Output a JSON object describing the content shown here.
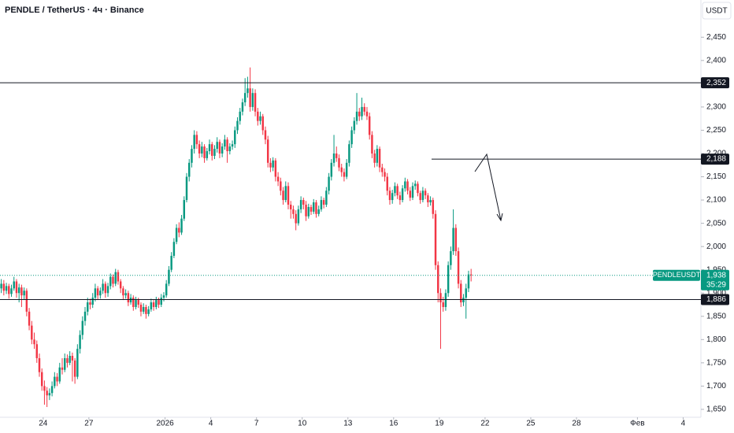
{
  "chart_data": {
    "type": "candlestick",
    "title": "PENDLE / TetherUS · 4ч · Binance",
    "currency_button": "USDT",
    "up_color": "#089981",
    "down_color": "#f23645",
    "ylim": [
      1633,
      2530
    ],
    "yticks": [
      {
        "value": 1650,
        "label": "1,650"
      },
      {
        "value": 1700,
        "label": "1,700"
      },
      {
        "value": 1750,
        "label": "1,750"
      },
      {
        "value": 1800,
        "label": "1,800"
      },
      {
        "value": 1850,
        "label": "1,850"
      },
      {
        "value": 1900,
        "label": "1,900"
      },
      {
        "value": 1950,
        "label": "1,950"
      },
      {
        "value": 2000,
        "label": "2,000"
      },
      {
        "value": 2050,
        "label": "2,050"
      },
      {
        "value": 2100,
        "label": "2,100"
      },
      {
        "value": 2150,
        "label": "2,150"
      },
      {
        "value": 2200,
        "label": "2,200"
      },
      {
        "value": 2250,
        "label": "2,250"
      },
      {
        "value": 2300,
        "label": "2,300"
      },
      {
        "value": 2350,
        "label": "2,350"
      },
      {
        "value": 2400,
        "label": "2,400"
      },
      {
        "value": 2450,
        "label": "2,450"
      }
    ],
    "xlim": [
      0,
      276
    ],
    "xticks": [
      {
        "value": 17,
        "label": "24"
      },
      {
        "value": 35,
        "label": "27"
      },
      {
        "value": 65,
        "label": "2026"
      },
      {
        "value": 83,
        "label": "4"
      },
      {
        "value": 101,
        "label": "7"
      },
      {
        "value": 119,
        "label": "10"
      },
      {
        "value": 137,
        "label": "13"
      },
      {
        "value": 155,
        "label": "16"
      },
      {
        "value": 173,
        "label": "19"
      },
      {
        "value": 191,
        "label": "22"
      },
      {
        "value": 209,
        "label": "25"
      },
      {
        "value": 227,
        "label": "28"
      },
      {
        "value": 251,
        "label": "Фев"
      },
      {
        "value": 269,
        "label": "4"
      }
    ],
    "levels": [
      {
        "value": 2352,
        "label": "2,352",
        "full": true
      },
      {
        "value": 2188,
        "label": "2,188",
        "full": false
      },
      {
        "value": 1886,
        "label": "1,886",
        "full": true
      }
    ],
    "last_price": {
      "symbol": "PENDLEUSDT",
      "value": 1938,
      "label": "1,938",
      "countdown": "35:29"
    },
    "ohlc": [
      [
        1910,
        1930,
        1900,
        1920
      ],
      [
        1920,
        1928,
        1895,
        1905
      ],
      [
        1905,
        1922,
        1898,
        1915
      ],
      [
        1915,
        1920,
        1888,
        1898
      ],
      [
        1898,
        1918,
        1892,
        1910
      ],
      [
        1910,
        1935,
        1905,
        1925
      ],
      [
        1925,
        1930,
        1890,
        1900
      ],
      [
        1900,
        1920,
        1880,
        1912
      ],
      [
        1912,
        1918,
        1870,
        1895
      ],
      [
        1895,
        1912,
        1885,
        1905
      ],
      [
        1905,
        1910,
        1850,
        1860
      ],
      [
        1860,
        1868,
        1820,
        1830
      ],
      [
        1830,
        1840,
        1790,
        1800
      ],
      [
        1800,
        1815,
        1780,
        1790
      ],
      [
        1790,
        1798,
        1750,
        1760
      ],
      [
        1760,
        1770,
        1720,
        1730
      ],
      [
        1730,
        1738,
        1690,
        1700
      ],
      [
        1700,
        1712,
        1660,
        1690
      ],
      [
        1690,
        1698,
        1655,
        1680
      ],
      [
        1680,
        1695,
        1670,
        1685
      ],
      [
        1685,
        1710,
        1678,
        1700
      ],
      [
        1700,
        1730,
        1695,
        1720
      ],
      [
        1720,
        1728,
        1700,
        1710
      ],
      [
        1710,
        1750,
        1705,
        1740
      ],
      [
        1740,
        1760,
        1725,
        1735
      ],
      [
        1735,
        1770,
        1730,
        1760
      ],
      [
        1760,
        1768,
        1740,
        1750
      ],
      [
        1750,
        1775,
        1745,
        1765
      ],
      [
        1765,
        1772,
        1710,
        1755
      ],
      [
        1755,
        1760,
        1705,
        1720
      ],
      [
        1720,
        1790,
        1715,
        1780
      ],
      [
        1780,
        1820,
        1770,
        1810
      ],
      [
        1810,
        1850,
        1800,
        1840
      ],
      [
        1840,
        1870,
        1830,
        1860
      ],
      [
        1860,
        1890,
        1852,
        1880
      ],
      [
        1880,
        1888,
        1865,
        1875
      ],
      [
        1875,
        1900,
        1868,
        1890
      ],
      [
        1890,
        1920,
        1882,
        1910
      ],
      [
        1910,
        1915,
        1885,
        1895
      ],
      [
        1895,
        1912,
        1888,
        1905
      ],
      [
        1905,
        1930,
        1898,
        1920
      ],
      [
        1920,
        1925,
        1890,
        1900
      ],
      [
        1900,
        1922,
        1892,
        1915
      ],
      [
        1915,
        1942,
        1908,
        1935
      ],
      [
        1935,
        1940,
        1912,
        1920
      ],
      [
        1920,
        1952,
        1915,
        1945
      ],
      [
        1945,
        1950,
        1918,
        1925
      ],
      [
        1925,
        1930,
        1900,
        1910
      ],
      [
        1910,
        1915,
        1885,
        1895
      ],
      [
        1895,
        1908,
        1888,
        1900
      ],
      [
        1900,
        1905,
        1872,
        1880
      ],
      [
        1880,
        1898,
        1875,
        1890
      ],
      [
        1890,
        1895,
        1862,
        1870
      ],
      [
        1870,
        1892,
        1865,
        1885
      ],
      [
        1885,
        1890,
        1868,
        1875
      ],
      [
        1875,
        1880,
        1850,
        1860
      ],
      [
        1860,
        1878,
        1855,
        1870
      ],
      [
        1870,
        1875,
        1845,
        1855
      ],
      [
        1855,
        1872,
        1850,
        1865
      ],
      [
        1865,
        1888,
        1860,
        1880
      ],
      [
        1880,
        1885,
        1862,
        1870
      ],
      [
        1870,
        1892,
        1865,
        1885
      ],
      [
        1885,
        1890,
        1868,
        1875
      ],
      [
        1875,
        1898,
        1870,
        1890
      ],
      [
        1890,
        1902,
        1882,
        1895
      ],
      [
        1895,
        1928,
        1890,
        1920
      ],
      [
        1920,
        1958,
        1915,
        1950
      ],
      [
        1950,
        1988,
        1945,
        1980
      ],
      [
        1980,
        2018,
        1975,
        2010
      ],
      [
        2010,
        2048,
        2005,
        2040
      ],
      [
        2040,
        2052,
        2020,
        2030
      ],
      [
        2030,
        2068,
        2025,
        2060
      ],
      [
        2060,
        2108,
        2055,
        2100
      ],
      [
        2100,
        2158,
        2095,
        2150
      ],
      [
        2150,
        2188,
        2140,
        2180
      ],
      [
        2180,
        2218,
        2170,
        2210
      ],
      [
        2210,
        2250,
        2200,
        2240
      ],
      [
        2240,
        2248,
        2210,
        2220
      ],
      [
        2220,
        2228,
        2190,
        2200
      ],
      [
        2200,
        2225,
        2192,
        2215
      ],
      [
        2215,
        2220,
        2180,
        2190
      ],
      [
        2190,
        2212,
        2185,
        2205
      ],
      [
        2205,
        2230,
        2198,
        2220
      ],
      [
        2220,
        2225,
        2185,
        2195
      ],
      [
        2195,
        2218,
        2188,
        2210
      ],
      [
        2210,
        2235,
        2202,
        2225
      ],
      [
        2225,
        2230,
        2190,
        2200
      ],
      [
        2200,
        2222,
        2192,
        2215
      ],
      [
        2215,
        2240,
        2208,
        2230
      ],
      [
        2230,
        2235,
        2180,
        2205
      ],
      [
        2205,
        2222,
        2198,
        2215
      ],
      [
        2215,
        2228,
        2208,
        2220
      ],
      [
        2220,
        2258,
        2212,
        2250
      ],
      [
        2250,
        2278,
        2242,
        2270
      ],
      [
        2270,
        2298,
        2262,
        2290
      ],
      [
        2290,
        2318,
        2282,
        2310
      ],
      [
        2310,
        2362,
        2302,
        2330
      ],
      [
        2330,
        2365,
        2320,
        2340
      ],
      [
        2340,
        2385,
        2290,
        2300
      ],
      [
        2300,
        2340,
        2292,
        2330
      ],
      [
        2330,
        2338,
        2280,
        2290
      ],
      [
        2290,
        2298,
        2260,
        2270
      ],
      [
        2270,
        2290,
        2262,
        2280
      ],
      [
        2280,
        2285,
        2240,
        2250
      ],
      [
        2250,
        2258,
        2220,
        2230
      ],
      [
        2230,
        2238,
        2170,
        2180
      ],
      [
        2180,
        2190,
        2160,
        2170
      ],
      [
        2170,
        2192,
        2162,
        2185
      ],
      [
        2185,
        2190,
        2140,
        2150
      ],
      [
        2150,
        2160,
        2130,
        2140
      ],
      [
        2140,
        2148,
        2110,
        2120
      ],
      [
        2120,
        2128,
        2090,
        2100
      ],
      [
        2100,
        2140,
        2095,
        2130
      ],
      [
        2130,
        2138,
        2080,
        2090
      ],
      [
        2090,
        2098,
        2060,
        2080
      ],
      [
        2080,
        2088,
        2060,
        2070
      ],
      [
        2070,
        2078,
        2035,
        2050
      ],
      [
        2050,
        2088,
        2045,
        2080
      ],
      [
        2080,
        2108,
        2072,
        2100
      ],
      [
        2100,
        2105,
        2080,
        2090
      ],
      [
        2090,
        2098,
        2055,
        2065
      ],
      [
        2065,
        2092,
        2060,
        2085
      ],
      [
        2085,
        2090,
        2068,
        2075
      ],
      [
        2075,
        2102,
        2070,
        2095
      ],
      [
        2095,
        2100,
        2062,
        2070
      ],
      [
        2070,
        2088,
        2065,
        2080
      ],
      [
        2080,
        2108,
        2075,
        2100
      ],
      [
        2100,
        2105,
        2082,
        2090
      ],
      [
        2090,
        2128,
        2085,
        2120
      ],
      [
        2120,
        2158,
        2112,
        2150
      ],
      [
        2150,
        2188,
        2142,
        2180
      ],
      [
        2180,
        2240,
        2172,
        2200
      ],
      [
        2200,
        2215,
        2182,
        2190
      ],
      [
        2190,
        2198,
        2162,
        2170
      ],
      [
        2170,
        2178,
        2150,
        2160
      ],
      [
        2160,
        2168,
        2140,
        2150
      ],
      [
        2150,
        2188,
        2145,
        2180
      ],
      [
        2180,
        2228,
        2172,
        2220
      ],
      [
        2220,
        2258,
        2212,
        2250
      ],
      [
        2250,
        2278,
        2242,
        2270
      ],
      [
        2270,
        2330,
        2262,
        2290
      ],
      [
        2290,
        2298,
        2270,
        2280
      ],
      [
        2280,
        2320,
        2272,
        2300
      ],
      [
        2300,
        2308,
        2282,
        2290
      ],
      [
        2290,
        2300,
        2272,
        2280
      ],
      [
        2280,
        2288,
        2230,
        2240
      ],
      [
        2240,
        2248,
        2190,
        2200
      ],
      [
        2200,
        2208,
        2170,
        2180
      ],
      [
        2180,
        2218,
        2172,
        2210
      ],
      [
        2210,
        2215,
        2160,
        2170
      ],
      [
        2170,
        2178,
        2150,
        2160
      ],
      [
        2160,
        2168,
        2140,
        2150
      ],
      [
        2150,
        2158,
        2110,
        2120
      ],
      [
        2120,
        2128,
        2090,
        2100
      ],
      [
        2100,
        2122,
        2092,
        2115
      ],
      [
        2115,
        2138,
        2108,
        2130
      ],
      [
        2130,
        2135,
        2102,
        2110
      ],
      [
        2110,
        2118,
        2090,
        2100
      ],
      [
        2100,
        2132,
        2095,
        2125
      ],
      [
        2125,
        2148,
        2118,
        2140
      ],
      [
        2140,
        2145,
        2112,
        2120
      ],
      [
        2120,
        2128,
        2098,
        2105
      ],
      [
        2105,
        2138,
        2100,
        2130
      ],
      [
        2130,
        2142,
        2122,
        2135
      ],
      [
        2135,
        2140,
        2108,
        2115
      ],
      [
        2115,
        2120,
        2092,
        2100
      ],
      [
        2100,
        2128,
        2095,
        2120
      ],
      [
        2120,
        2125,
        2102,
        2110
      ],
      [
        2110,
        2115,
        2085,
        2095
      ],
      [
        2095,
        2108,
        2088,
        2100
      ],
      [
        2100,
        2105,
        2060,
        2070
      ],
      [
        2070,
        2078,
        1950,
        1960
      ],
      [
        1960,
        1968,
        1880,
        1900
      ],
      [
        1900,
        1910,
        1780,
        1880
      ],
      [
        1880,
        1892,
        1860,
        1870
      ],
      [
        1870,
        1908,
        1862,
        1900
      ],
      [
        1900,
        1968,
        1892,
        1960
      ],
      [
        1960,
        2000,
        1950,
        1990
      ],
      [
        1990,
        2080,
        1982,
        2040
      ],
      [
        2040,
        2048,
        1980,
        1990
      ],
      [
        1990,
        1998,
        1910,
        1920
      ],
      [
        1920,
        1928,
        1870,
        1880
      ],
      [
        1880,
        1898,
        1872,
        1890
      ],
      [
        1890,
        1920,
        1845,
        1910
      ],
      [
        1910,
        1948,
        1902,
        1940
      ],
      [
        1940,
        1952,
        1925,
        1938
      ]
    ]
  }
}
